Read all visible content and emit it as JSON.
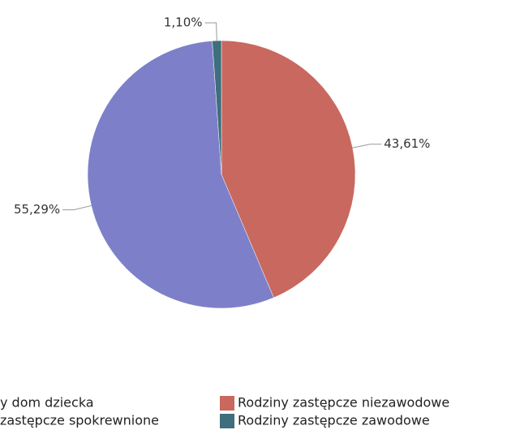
{
  "chart_data": {
    "type": "pie",
    "categories": [
      "y dom dziecka",
      "Rodziny zastępcze niezawodowe",
      "zastępcze spokrewnione",
      "Rodziny zastępcze zawodowe"
    ],
    "values": [
      null,
      43.61,
      55.29,
      1.1
    ],
    "value_labels": [
      null,
      "43,61%",
      "55,29%",
      "1,10%"
    ],
    "colors": [
      null,
      "#c8685f",
      "#7d80c8",
      "#3f6e7c"
    ],
    "legend": "bottom"
  }
}
